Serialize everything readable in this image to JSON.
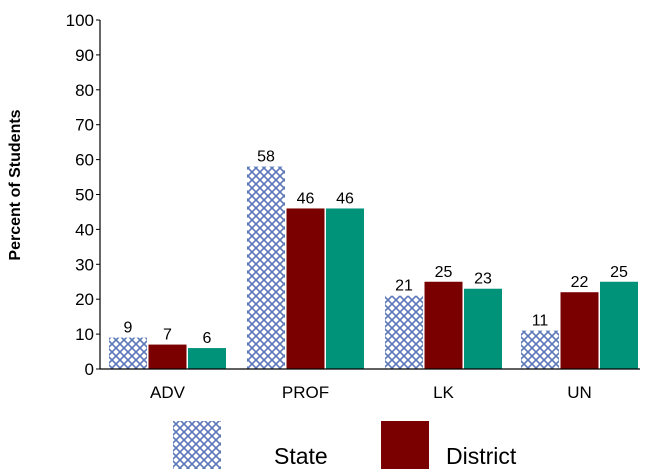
{
  "chart_data": {
    "type": "bar",
    "categories": [
      "ADV",
      "PROF",
      "LK",
      "UN"
    ],
    "series": [
      {
        "name": "State",
        "values": [
          9,
          58,
          21,
          11
        ],
        "color": "#3a5a9a",
        "pattern": "crosshatch"
      },
      {
        "name": "District",
        "values": [
          7,
          46,
          25,
          22
        ],
        "color": "#7a0000"
      },
      {
        "name": "",
        "values": [
          6,
          46,
          23,
          25
        ],
        "color": "#00937a"
      }
    ],
    "ylabel": "Percent of Students",
    "ylim": [
      0,
      100
    ],
    "yticks": [
      0,
      10,
      20,
      30,
      40,
      50,
      60,
      70,
      80,
      90,
      100
    ],
    "legend_position": "bottom",
    "grid": false
  }
}
